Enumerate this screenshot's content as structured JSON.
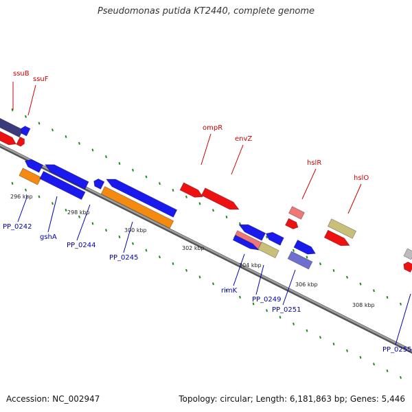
{
  "title": "Pseudomonas putida KT2440, complete genome",
  "footer": {
    "accession": "Accession: NC_002947",
    "summary": "Topology: circular; Length: 6,181,863 bp; Genes: 5,446"
  },
  "colors": {
    "backbone": "#808080",
    "tick": "#1a8a1a",
    "gene_label": "#cc0000",
    "locus_label": "#0000aa",
    "ruler_label": "#222222"
  },
  "ruler": [
    {
      "label": "296 kbp"
    },
    {
      "label": "298 kbp"
    },
    {
      "label": "300 kbp"
    },
    {
      "label": "302 kbp"
    },
    {
      "label": "304 kbp"
    },
    {
      "label": "306 kbp"
    },
    {
      "label": "308 kbp"
    }
  ],
  "gene_labels": [
    {
      "text": "ssuB"
    },
    {
      "text": "ssuF"
    },
    {
      "text": "ompR"
    },
    {
      "text": "envZ"
    },
    {
      "text": "hslR"
    },
    {
      "text": "hslO"
    }
  ],
  "locus_labels": [
    {
      "text": "PP_0242"
    },
    {
      "text": "gshA"
    },
    {
      "text": "PP_0244"
    },
    {
      "text": "PP_0245"
    },
    {
      "text": "rimK"
    },
    {
      "text": "PP_0249"
    },
    {
      "text": "PP_0251"
    },
    {
      "text": "PP_0255"
    }
  ]
}
